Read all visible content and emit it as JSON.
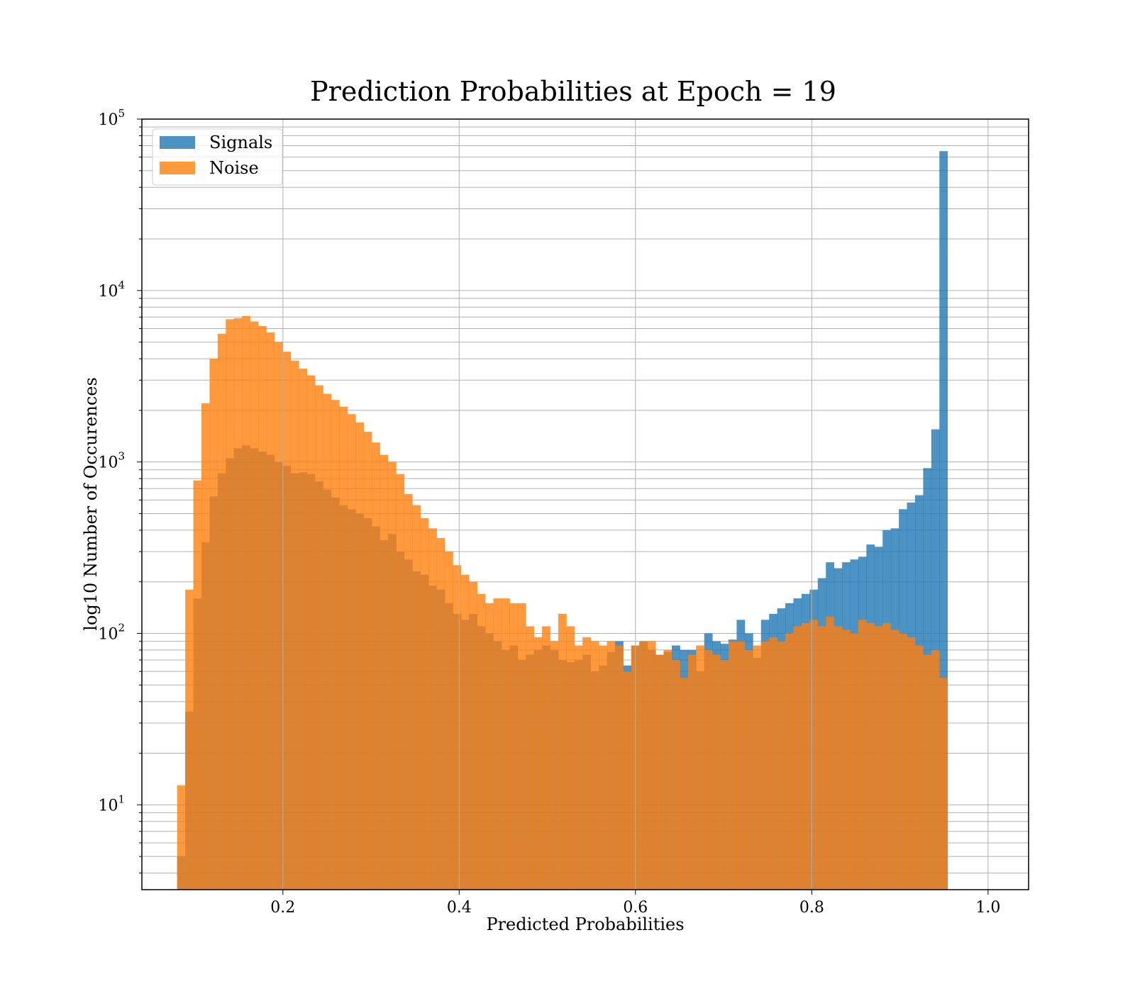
{
  "chart_data": {
    "type": "bar",
    "title": "Prediction Probabilities at Epoch = 19",
    "xlabel": "Predicted Probabilities",
    "ylabel": "log10 Number of Occurences",
    "yscale": "log",
    "xlim": [
      0.04,
      1.046
    ],
    "ylim": [
      3.2,
      100000
    ],
    "xticks": [
      "0.2",
      "0.4",
      "0.6",
      "0.8",
      "1.0"
    ],
    "yticks": [
      {
        "base": "10",
        "exp": "1"
      },
      {
        "base": "10",
        "exp": "2"
      },
      {
        "base": "10",
        "exp": "3"
      },
      {
        "base": "10",
        "exp": "4"
      },
      {
        "base": "10",
        "exp": "5"
      }
    ],
    "grid": true,
    "legend_position": "top-left",
    "bin_start": 0.08,
    "bin_width": 0.0092,
    "series": [
      {
        "name": "Signals",
        "color": "#1f77b4",
        "values": [
          5,
          35,
          160,
          340,
          630,
          860,
          1050,
          1200,
          1250,
          1200,
          1150,
          1100,
          1000,
          950,
          860,
          870,
          850,
          770,
          690,
          620,
          560,
          530,
          500,
          470,
          420,
          350,
          380,
          300,
          270,
          230,
          220,
          190,
          180,
          150,
          130,
          120,
          130,
          110,
          100,
          90,
          80,
          85,
          70,
          75,
          80,
          85,
          80,
          70,
          68,
          70,
          75,
          60,
          65,
          78,
          90,
          65,
          85,
          90,
          80,
          75,
          78,
          85,
          80,
          80,
          60,
          100,
          90,
          87,
          92,
          120,
          100,
          72,
          120,
          130,
          140,
          150,
          160,
          170,
          180,
          210,
          260,
          240,
          260,
          270,
          280,
          330,
          320,
          400,
          410,
          530,
          580,
          640,
          920,
          1550,
          65000
        ]
      },
      {
        "name": "Noise",
        "color": "#ff7f0e",
        "values": [
          13,
          180,
          780,
          2200,
          4000,
          5600,
          6800,
          6900,
          7100,
          6600,
          6200,
          5700,
          5000,
          4400,
          3900,
          3500,
          3200,
          2800,
          2500,
          2300,
          2100,
          1900,
          1700,
          1500,
          1300,
          1100,
          1000,
          850,
          650,
          560,
          470,
          410,
          360,
          300,
          250,
          220,
          200,
          170,
          150,
          160,
          160,
          150,
          150,
          110,
          95,
          110,
          90,
          130,
          110,
          85,
          95,
          90,
          85,
          90,
          85,
          60,
          85,
          90,
          90,
          75,
          80,
          70,
          55,
          75,
          85,
          80,
          75,
          70,
          90,
          90,
          80,
          85,
          90,
          95,
          90,
          100,
          110,
          115,
          120,
          110,
          125,
          110,
          105,
          100,
          120,
          115,
          110,
          115,
          105,
          100,
          95,
          85,
          75,
          80,
          55
        ]
      }
    ]
  }
}
